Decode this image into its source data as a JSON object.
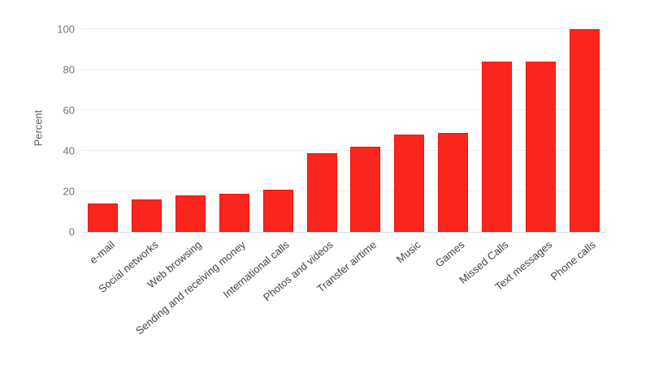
{
  "chart_data": {
    "type": "bar",
    "title": "",
    "xlabel": "",
    "ylabel": "Percent",
    "categories": [
      "e-mail",
      "Social networks",
      "Web browsing",
      "Sending and receiving money",
      "International calls",
      "Photos and videos",
      "Transfer airtime",
      "Music",
      "Games",
      "Missed Calls",
      "Text messages",
      "Phone calls"
    ],
    "values": [
      14,
      16,
      18,
      19,
      21,
      39,
      42,
      48,
      49,
      84,
      84,
      100
    ],
    "ylim": [
      0,
      100
    ],
    "yticks": [
      0,
      20,
      40,
      60,
      80,
      100
    ],
    "grid": true,
    "legend": "none",
    "colors": {
      "bar_fill": "#fa251c",
      "bar_border": "#ef1409",
      "gridline": "#ececec",
      "baseline": "#d9d9d9",
      "tick_label": "#757575",
      "category_label": "#444444",
      "axis_title": "#5f5f5f",
      "background": "#ffffff"
    }
  }
}
